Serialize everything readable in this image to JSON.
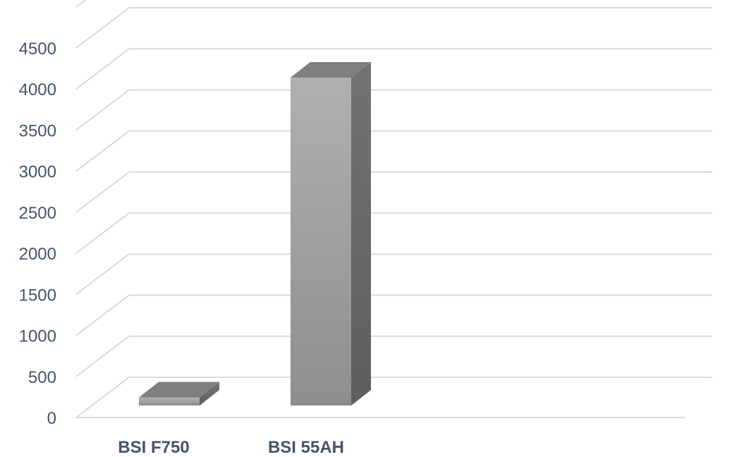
{
  "chart_data": {
    "type": "bar",
    "style": "3d-column",
    "categories": [
      "BSI F750",
      "BSI 55AH"
    ],
    "values": [
      100,
      4050
    ],
    "ylim": [
      0,
      4500
    ],
    "yticks": [
      0,
      500,
      1000,
      1500,
      2000,
      2500,
      3000,
      3500,
      4000,
      4500
    ],
    "grid": true,
    "title": "",
    "xlabel": "",
    "ylabel": "",
    "colors": {
      "front_top": "#b0b0b0",
      "front_bottom": "#8e8e8e",
      "side": "#6a6a6a",
      "top": "#7f7f7f",
      "grid": "#d9d9d9",
      "text": "#44546a"
    }
  }
}
